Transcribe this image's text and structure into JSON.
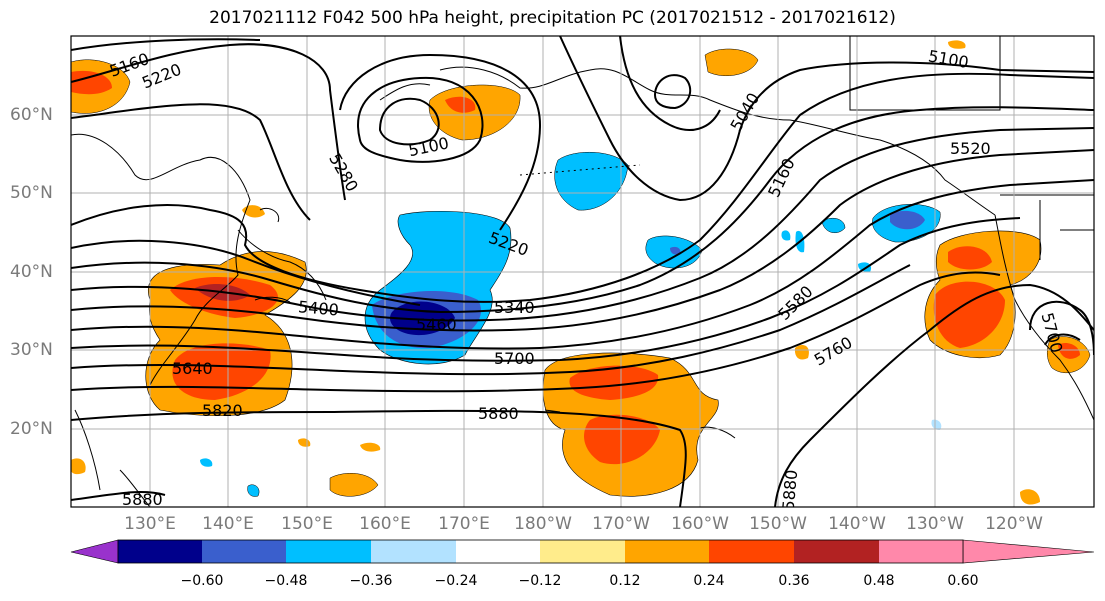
{
  "title": "2017021112 F042 500 hPa height, precipitation PC (2017021512 - 2017021612)",
  "longitude_labels": [
    "130°E",
    "140°E",
    "150°E",
    "160°E",
    "170°E",
    "180°W",
    "170°W",
    "160°W",
    "150°W",
    "140°W",
    "130°W",
    "120°W"
  ],
  "latitude_labels": [
    "60°N",
    "50°N",
    "40°N",
    "30°N",
    "20°N"
  ],
  "colorbar": {
    "tick_labels": [
      "−0.60",
      "−0.48",
      "−0.36",
      "−0.24",
      "−0.12",
      "0.12",
      "0.24",
      "0.36",
      "0.48",
      "0.60"
    ],
    "colors": [
      "#9932cc",
      "#00008b",
      "#3a5fcd",
      "#00bfff",
      "#b2e2ff",
      "#ffffff",
      "#ffec8b",
      "#ffa500",
      "#ff4500",
      "#b22222",
      "#ff88aa"
    ]
  },
  "contour_labels": [
    "5160",
    "5220",
    "5100",
    "5040",
    "5100",
    "5280",
    "5160",
    "5520",
    "5220",
    "5340",
    "5400",
    "5460",
    "5580",
    "5700",
    "5640",
    "5760",
    "5820",
    "5880",
    "5700",
    "5880",
    "5880"
  ],
  "colors": {
    "contour": "#000000",
    "coast": "#000000",
    "grid": "#b0b0b0",
    "axis_label": "#7a7a7a"
  }
}
